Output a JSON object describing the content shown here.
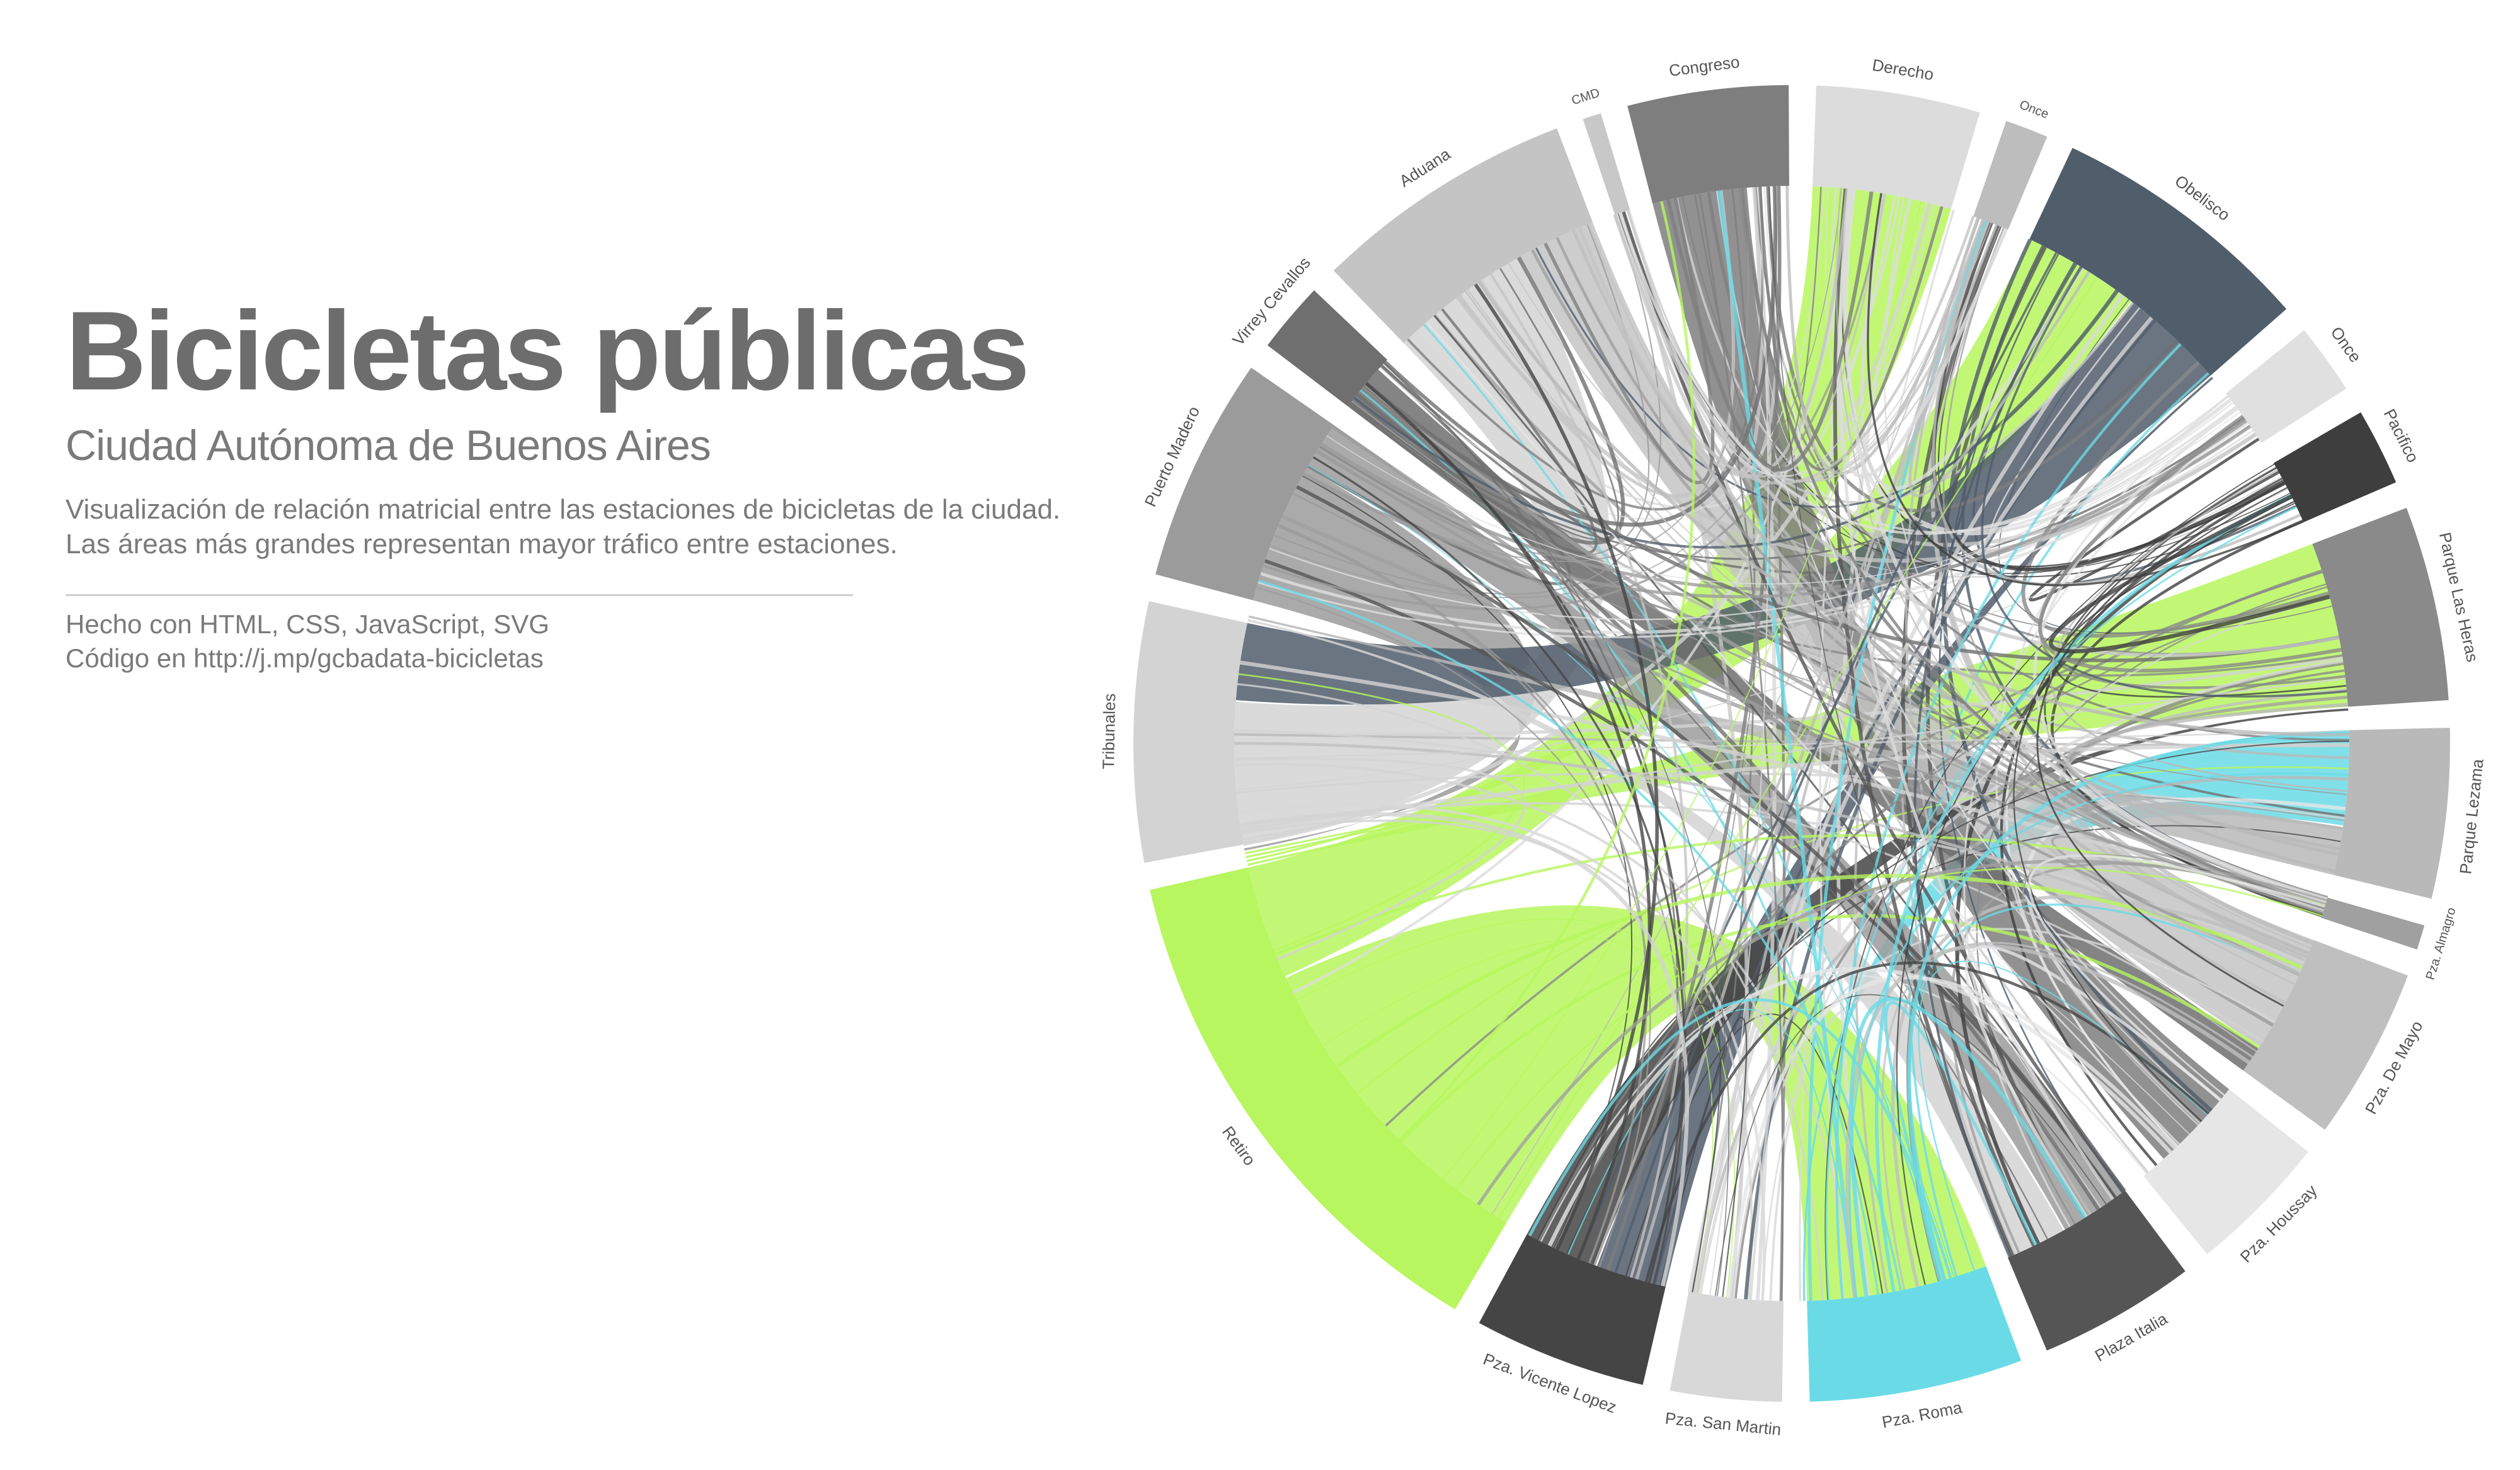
{
  "header": {
    "title": "Bicicletas públicas",
    "subtitle": "Ciudad Autónoma de Buenos Aires",
    "description": [
      "Visualización de relación matricial entre las estaciones de bicicletas de la ciudad.",
      "Las áreas más grandes representan mayor tráfico entre estaciones."
    ],
    "credits": [
      "Hecho con HTML, CSS, JavaScript, SVG",
      "Código en http://j.mp/gcbadata-bicicletas"
    ]
  },
  "stations": [
    {
      "label": "Aduana",
      "weight": 8.5,
      "color": "#c4c4c4"
    },
    {
      "label": "CMD",
      "weight": 0.6,
      "color": "#c8c8c8"
    },
    {
      "label": "Congreso",
      "weight": 5.2,
      "color": "#7e7e7e"
    },
    {
      "label": "Derecho",
      "weight": 5.3,
      "color": "#dcdcdc"
    },
    {
      "label": "Once",
      "weight": 1.4,
      "color": "#bdbdbd"
    },
    {
      "label": "Obelisco",
      "weight": 8.6,
      "color": "#505d6b"
    },
    {
      "label": "Once",
      "weight": 2.3,
      "color": "#e0e0e0"
    },
    {
      "label": "Pacifico",
      "weight": 2.5,
      "color": "#3e3e3e"
    },
    {
      "label": "Parque Las Heras",
      "weight": 6.3,
      "color": "#8a8a8a"
    },
    {
      "label": "Parque Lezama",
      "weight": 5.5,
      "color": "#b9b9b9"
    },
    {
      "label": "Pza. Almagro",
      "weight": 0.8,
      "color": "#a0a0a0"
    },
    {
      "label": "Pza. De Mayo",
      "weight": 5.6,
      "color": "#bfbfbf"
    },
    {
      "label": "Pza. Houssay",
      "weight": 4.6,
      "color": "#e6e6e6"
    },
    {
      "label": "Plaza Italia",
      "weight": 5.1,
      "color": "#555555"
    },
    {
      "label": "Pza. Roma",
      "weight": 6.9,
      "color": "#6adbe6"
    },
    {
      "label": "Pza. San Martin",
      "weight": 3.6,
      "color": "#d8d8d8"
    },
    {
      "label": "Pza. Vicente Lopez",
      "weight": 5.6,
      "color": "#454545"
    },
    {
      "label": "Retiro",
      "weight": 17.0,
      "color": "#b7f65e"
    },
    {
      "label": "Tribunales",
      "weight": 8.4,
      "color": "#d3d3d3"
    },
    {
      "label": "Puerto Madero",
      "weight": 7.3,
      "color": "#9b9b9b"
    },
    {
      "label": "Virrey Cevallos",
      "weight": 2.3,
      "color": "#6f6f6f"
    }
  ],
  "flows": [
    {
      "from": "Retiro",
      "to": "Pza. Roma",
      "value": 14
    },
    {
      "from": "Retiro",
      "to": "Derecho",
      "value": 11
    },
    {
      "from": "Retiro",
      "to": "Parque Las Heras",
      "value": 7
    },
    {
      "from": "Retiro",
      "to": "Obelisco",
      "value": 5
    },
    {
      "from": "Retiro",
      "to": "Retiro",
      "value": 9
    },
    {
      "from": "Puerto Madero",
      "to": "Retiro",
      "value": 6
    },
    {
      "from": "Tribunales",
      "to": "Aduana",
      "value": 6
    },
    {
      "from": "Obelisco",
      "to": "Tribunales",
      "value": 5
    },
    {
      "from": "Obelisco",
      "to": "Pza. Vicente Lopez",
      "value": 3
    },
    {
      "from": "Pza. Roma",
      "to": "Parque Lezama",
      "value": 4
    },
    {
      "from": "Puerto Madero",
      "to": "Plaza Italia",
      "value": 3
    },
    {
      "from": "Congreso",
      "to": "Pza. Houssay",
      "value": 4
    },
    {
      "from": "Derecho",
      "to": "Pza. Roma",
      "value": 3
    },
    {
      "from": "Aduana",
      "to": "Pza. De Mayo",
      "value": 5
    },
    {
      "from": "Pza. Vicente Lopez",
      "to": "Parque Las Heras",
      "value": 4
    },
    {
      "from": "Tribunales",
      "to": "Plaza Italia",
      "value": 4
    },
    {
      "from": "Virrey Cevallos",
      "to": "Pza. De Mayo",
      "value": 2
    },
    {
      "from": "Parque Lezama",
      "to": "Tribunales",
      "value": 3
    }
  ]
}
